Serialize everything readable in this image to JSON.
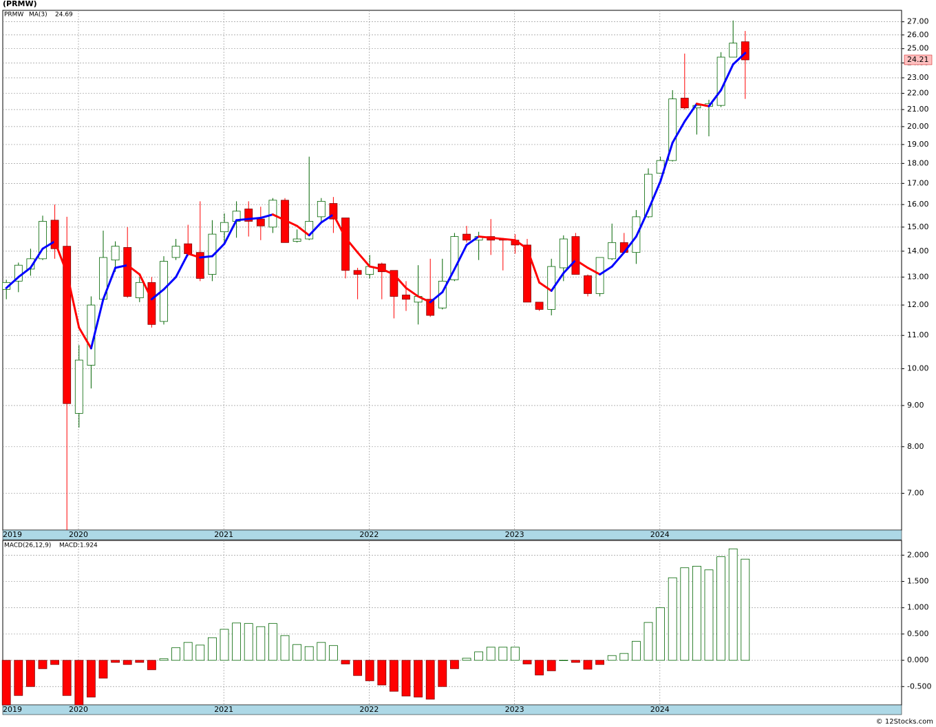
{
  "chart_data": [
    {
      "type": "candlestick",
      "title": "(PRMW)",
      "ticker": "PRMW",
      "categories": [
        "2019",
        null,
        null,
        "2020",
        null,
        null,
        null,
        null,
        null,
        null,
        null,
        null,
        null,
        null,
        null,
        "2021",
        null,
        null,
        null,
        null,
        null,
        null,
        null,
        null,
        null,
        null,
        null,
        "2022",
        null,
        null,
        null,
        null,
        null,
        null,
        null,
        null,
        null,
        null,
        null,
        "2023",
        null,
        null,
        null,
        null,
        null,
        null,
        null,
        null,
        null,
        null,
        null,
        "2024",
        null,
        null,
        null,
        null,
        null,
        null,
        null,
        null,
        null,
        null
      ],
      "open": [
        12.55,
        12.85,
        13.3,
        13.7,
        15.3,
        14.2,
        8.8,
        10.1,
        12.2,
        13.65,
        14.15,
        12.25,
        12.8,
        11.45,
        13.75,
        14.3,
        13.95,
        13.1,
        14.8,
        15.25,
        15.8,
        15.35,
        15.0,
        16.2,
        14.4,
        14.5,
        15.45,
        16.05,
        15.4,
        13.25,
        13.1,
        13.5,
        13.25,
        12.35,
        12.1,
        12.2,
        11.9,
        12.9,
        14.7,
        14.45,
        14.6,
        14.5,
        14.45,
        14.25,
        12.1,
        11.85,
        13.35,
        14.6,
        13.05,
        12.4,
        13.7,
        14.35,
        13.95,
        15.45,
        17.5,
        18.15,
        21.7,
        21.1,
        21.2,
        21.25,
        24.4,
        25.5
      ],
      "high": [
        12.9,
        13.55,
        14.1,
        15.5,
        16.0,
        15.45,
        10.7,
        12.3,
        14.85,
        14.4,
        15.0,
        13.0,
        13.0,
        13.8,
        14.5,
        15.1,
        16.15,
        15.3,
        15.6,
        16.15,
        16.15,
        15.9,
        16.3,
        16.3,
        14.9,
        18.35,
        16.3,
        16.35,
        15.4,
        13.35,
        13.85,
        13.55,
        13.25,
        12.85,
        13.45,
        13.7,
        13.7,
        14.75,
        15.05,
        14.8,
        15.35,
        14.5,
        14.7,
        14.5,
        12.1,
        13.7,
        14.65,
        14.75,
        13.1,
        13.75,
        15.15,
        14.75,
        15.75,
        17.75,
        18.35,
        22.2,
        24.65,
        21.4,
        21.6,
        24.75,
        27.1,
        26.3
      ],
      "low": [
        12.2,
        12.45,
        13.05,
        13.65,
        13.7,
        6.3,
        8.45,
        9.45,
        12.1,
        13.2,
        12.25,
        12.1,
        11.25,
        11.35,
        13.65,
        13.8,
        12.85,
        12.85,
        14.3,
        14.55,
        14.6,
        14.45,
        14.75,
        14.35,
        14.35,
        14.45,
        15.25,
        14.75,
        12.95,
        12.2,
        12.95,
        12.2,
        11.55,
        11.8,
        11.35,
        11.6,
        11.85,
        12.85,
        14.35,
        13.65,
        13.85,
        13.25,
        13.9,
        12.1,
        11.8,
        11.65,
        12.85,
        13.1,
        12.3,
        12.3,
        13.65,
        13.9,
        13.5,
        15.4,
        17.5,
        18.1,
        21.0,
        19.55,
        19.45,
        21.15,
        24.4,
        21.65
      ],
      "close": [
        12.8,
        13.45,
        13.7,
        15.25,
        14.1,
        9.05,
        10.25,
        12.0,
        13.75,
        14.2,
        12.3,
        12.8,
        11.35,
        13.6,
        14.2,
        13.9,
        12.95,
        14.7,
        15.2,
        15.7,
        15.25,
        15.05,
        16.2,
        14.35,
        14.5,
        15.25,
        16.15,
        15.35,
        13.25,
        13.1,
        13.4,
        13.2,
        12.3,
        12.2,
        12.3,
        11.65,
        12.85,
        14.6,
        14.45,
        14.6,
        14.45,
        14.45,
        14.25,
        12.1,
        11.85,
        13.4,
        14.5,
        13.1,
        12.4,
        13.75,
        14.35,
        13.95,
        15.45,
        17.45,
        18.15,
        21.65,
        21.1,
        21.25,
        21.35,
        24.4,
        25.4,
        24.21
      ],
      "up_color": "#ffffff",
      "up_edge": "#006400",
      "down_color": "#ff0000",
      "ma": {
        "name": "MA(3)",
        "rising_color": "#0000ff",
        "falling_color": "#ff0000",
        "values": [
          12.6,
          13.0,
          13.35,
          14.1,
          14.4,
          13.15,
          11.25,
          10.6,
          12.2,
          13.35,
          13.45,
          13.1,
          12.2,
          12.55,
          13.0,
          13.9,
          13.75,
          13.8,
          14.3,
          15.3,
          15.35,
          15.4,
          15.55,
          15.3,
          15.05,
          14.65,
          15.2,
          15.55,
          14.55,
          13.95,
          13.4,
          13.3,
          13.1,
          12.6,
          12.3,
          12.1,
          12.45,
          13.3,
          14.25,
          14.6,
          14.55,
          14.5,
          14.45,
          14.1,
          12.8,
          12.5,
          13.15,
          13.65,
          13.35,
          13.1,
          13.4,
          13.95,
          14.6,
          15.75,
          17.1,
          19.1,
          20.3,
          21.35,
          21.2,
          22.2,
          23.9,
          24.69
        ]
      },
      "log_scale": true,
      "grid": true,
      "ylim": [
        6.3,
        27.9
      ],
      "yticks": [
        {
          "value": 7,
          "label": "7.00"
        },
        {
          "value": 8,
          "label": "8.00"
        },
        {
          "value": 9,
          "label": "9.00"
        },
        {
          "value": 10,
          "label": "10.00"
        },
        {
          "value": 11,
          "label": "11.00"
        },
        {
          "value": 12,
          "label": "12.00"
        },
        {
          "value": 13,
          "label": "13.00"
        },
        {
          "value": 14,
          "label": "14.00"
        },
        {
          "value": 15,
          "label": "15.00"
        },
        {
          "value": 16,
          "label": "16.00"
        },
        {
          "value": 17,
          "label": "17.00"
        },
        {
          "value": 18,
          "label": "18.00"
        },
        {
          "value": 19,
          "label": "19.00"
        },
        {
          "value": 20,
          "label": "20.00"
        },
        {
          "value": 21,
          "label": "21.00"
        },
        {
          "value": 22,
          "label": "22.00"
        },
        {
          "value": 23,
          "label": "23.00"
        },
        {
          "value": 24,
          "label": "24.00"
        },
        {
          "value": 25,
          "label": "25.00"
        },
        {
          "value": 26,
          "label": "26.00"
        },
        {
          "value": 27,
          "label": "27.00"
        }
      ]
    },
    {
      "type": "bar",
      "title": "MACD(26,12,9)",
      "legend": "MACD:1.924",
      "categories": [
        "2019",
        null,
        null,
        "2020",
        null,
        null,
        null,
        null,
        null,
        null,
        null,
        null,
        null,
        null,
        null,
        "2021",
        null,
        null,
        null,
        null,
        null,
        null,
        null,
        null,
        null,
        null,
        null,
        "2022",
        null,
        null,
        null,
        null,
        null,
        null,
        null,
        null,
        null,
        null,
        null,
        "2023",
        null,
        null,
        null,
        null,
        null,
        null,
        null,
        null,
        null,
        null,
        null,
        "2024",
        null,
        null,
        null,
        null,
        null,
        null,
        null,
        null,
        null,
        null
      ],
      "values": [
        -0.85,
        -0.67,
        -0.5,
        -0.16,
        -0.08,
        -0.67,
        -0.85,
        -0.7,
        -0.34,
        -0.04,
        -0.08,
        -0.04,
        -0.18,
        0.03,
        0.24,
        0.34,
        0.29,
        0.43,
        0.59,
        0.71,
        0.7,
        0.64,
        0.7,
        0.47,
        0.3,
        0.26,
        0.34,
        0.28,
        -0.07,
        -0.29,
        -0.39,
        -0.47,
        -0.59,
        -0.68,
        -0.7,
        -0.74,
        -0.5,
        -0.16,
        0.04,
        0.16,
        0.25,
        0.25,
        0.25,
        -0.07,
        -0.28,
        -0.2,
        0,
        -0.04,
        -0.17,
        -0.08,
        0.09,
        0.13,
        0.36,
        0.72,
        1.0,
        1.57,
        1.76,
        1.79,
        1.72,
        1.97,
        2.12,
        1.924
      ],
      "positive_edge": "#006400",
      "negative_color": "#ff0000",
      "grid": true,
      "ylim": [
        -0.85,
        2.28
      ],
      "yticks": [
        {
          "value": -0.5,
          "label": "-0.500"
        },
        {
          "value": 0,
          "label": "0.000"
        },
        {
          "value": 0.5,
          "label": "0.500"
        },
        {
          "value": 1,
          "label": "1.000"
        },
        {
          "value": 1.5,
          "label": "1.500"
        },
        {
          "value": 2,
          "label": "2.000"
        }
      ]
    }
  ],
  "footer": "© 12Stocks.com"
}
